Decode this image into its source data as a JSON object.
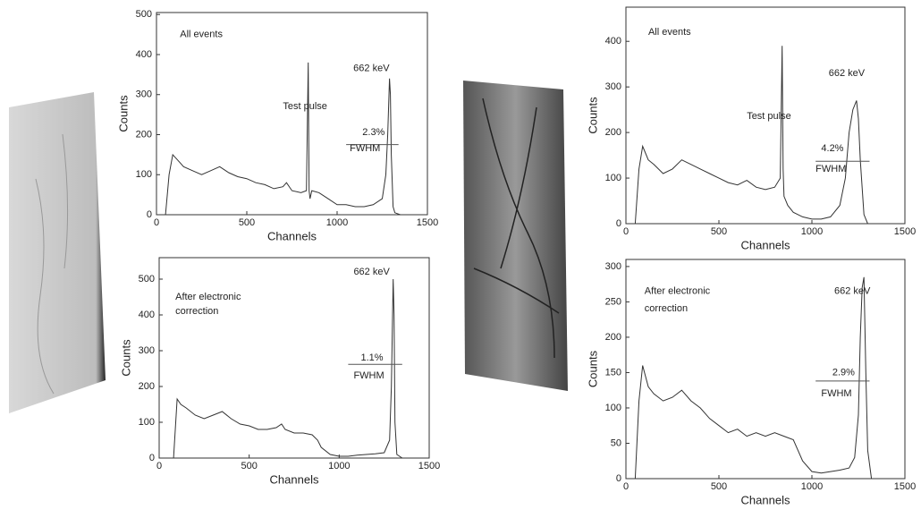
{
  "chart_data": [
    {
      "type": "line",
      "xlabel": "Channels",
      "ylabel": "Counts",
      "color": "#333333",
      "annotations": [
        "All events",
        "Test pulse",
        "662 keV",
        "2.3%",
        "FWHM"
      ],
      "xlim": [
        0,
        1500
      ],
      "xticks": [
        0,
        500,
        1000,
        1500
      ],
      "ylim": [
        0,
        505
      ],
      "yticks": [
        0,
        100,
        200,
        300,
        400,
        500
      ],
      "x": [
        50,
        70,
        90,
        110,
        130,
        150,
        200,
        250,
        300,
        350,
        400,
        450,
        500,
        550,
        600,
        650,
        700,
        720,
        750,
        800,
        830,
        840,
        845,
        850,
        860,
        900,
        950,
        1000,
        1050,
        1100,
        1150,
        1200,
        1250,
        1270,
        1280,
        1290,
        1295,
        1300,
        1310,
        1320,
        1350
      ],
      "values": [
        0,
        100,
        150,
        140,
        130,
        120,
        110,
        100,
        110,
        120,
        105,
        95,
        90,
        80,
        75,
        65,
        70,
        80,
        60,
        55,
        60,
        380,
        60,
        40,
        60,
        55,
        40,
        25,
        25,
        20,
        20,
        25,
        40,
        100,
        200,
        340,
        300,
        150,
        20,
        5,
        0
      ]
    },
    {
      "type": "line",
      "xlabel": "Channels",
      "ylabel": "Counts",
      "color": "#333333",
      "annotations": [
        "After electronic",
        "correction",
        "662 keV",
        "1.1%",
        "FWHM"
      ],
      "xlim": [
        0,
        1500
      ],
      "xticks": [
        0,
        500,
        1000,
        1500
      ],
      "ylim": [
        0,
        560
      ],
      "yticks": [
        0,
        100,
        200,
        300,
        400,
        500
      ],
      "x": [
        80,
        100,
        120,
        150,
        200,
        250,
        300,
        350,
        400,
        450,
        500,
        550,
        600,
        650,
        680,
        700,
        750,
        800,
        850,
        880,
        900,
        950,
        1000,
        1050,
        1100,
        1150,
        1200,
        1250,
        1280,
        1290,
        1300,
        1305,
        1310,
        1320,
        1350
      ],
      "values": [
        0,
        165,
        150,
        140,
        120,
        110,
        120,
        130,
        110,
        95,
        90,
        80,
        80,
        85,
        95,
        80,
        70,
        70,
        65,
        50,
        30,
        10,
        5,
        5,
        8,
        10,
        12,
        15,
        50,
        200,
        500,
        400,
        100,
        10,
        0
      ]
    },
    {
      "type": "line",
      "xlabel": "Channels",
      "ylabel": "Counts",
      "color": "#333333",
      "annotations": [
        "All events",
        "Test pulse",
        "662 keV",
        "4.2%",
        "FWHM"
      ],
      "xlim": [
        0,
        1500
      ],
      "xticks": [
        0,
        500,
        1000,
        1500
      ],
      "ylim": [
        0,
        475
      ],
      "yticks": [
        0,
        100,
        200,
        300,
        400
      ],
      "x": [
        50,
        70,
        90,
        100,
        120,
        150,
        200,
        250,
        300,
        350,
        400,
        450,
        500,
        550,
        600,
        650,
        700,
        750,
        800,
        830,
        840,
        845,
        850,
        870,
        900,
        950,
        1000,
        1050,
        1100,
        1150,
        1180,
        1200,
        1220,
        1240,
        1250,
        1260,
        1280,
        1300
      ],
      "values": [
        0,
        120,
        170,
        160,
        140,
        130,
        110,
        120,
        140,
        130,
        120,
        110,
        100,
        90,
        85,
        95,
        80,
        75,
        80,
        100,
        390,
        120,
        60,
        40,
        25,
        15,
        10,
        10,
        15,
        40,
        100,
        200,
        250,
        270,
        230,
        140,
        20,
        0
      ]
    },
    {
      "type": "line",
      "xlabel": "Channels",
      "ylabel": "Counts",
      "color": "#333333",
      "annotations": [
        "After electronic",
        "correction",
        "662 keV",
        "2.9%",
        "FWHM"
      ],
      "xlim": [
        0,
        1500
      ],
      "xticks": [
        0,
        500,
        1000,
        1500
      ],
      "ylim": [
        0,
        310
      ],
      "yticks": [
        0,
        50,
        100,
        150,
        200,
        250,
        300
      ],
      "x": [
        50,
        70,
        90,
        100,
        120,
        150,
        200,
        250,
        300,
        350,
        400,
        450,
        500,
        550,
        600,
        650,
        700,
        750,
        800,
        850,
        900,
        950,
        1000,
        1050,
        1100,
        1150,
        1200,
        1230,
        1250,
        1260,
        1270,
        1280,
        1290,
        1300,
        1320
      ],
      "values": [
        0,
        110,
        160,
        150,
        130,
        120,
        110,
        115,
        125,
        110,
        100,
        85,
        75,
        65,
        70,
        60,
        65,
        60,
        65,
        60,
        55,
        25,
        10,
        8,
        10,
        12,
        15,
        30,
        90,
        200,
        270,
        285,
        150,
        40,
        0
      ]
    }
  ]
}
